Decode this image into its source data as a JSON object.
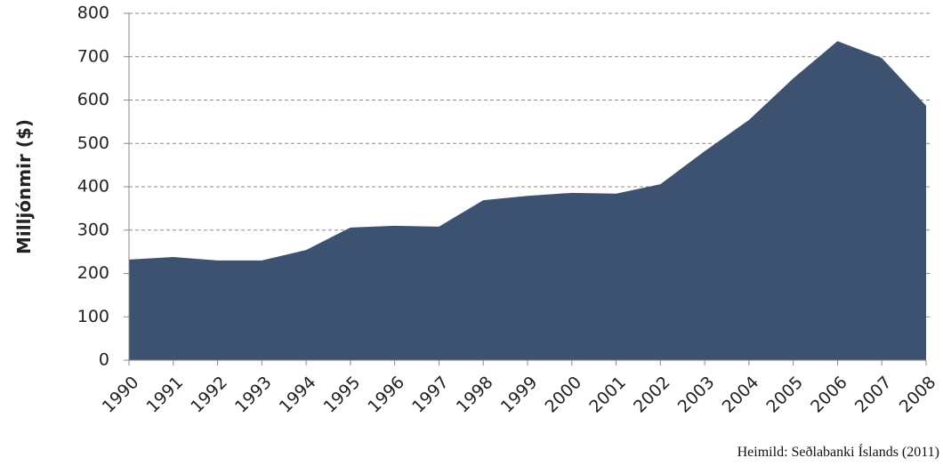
{
  "chart_data": {
    "type": "area",
    "y_label": "Milljónmir ($)",
    "source": "Heimild: Seðlabanki Íslands (2011)",
    "categories": [
      "1990",
      "1991",
      "1992",
      "1993",
      "1994",
      "1995",
      "1996",
      "1997",
      "1998",
      "1999",
      "2000",
      "2001",
      "2002",
      "2003",
      "2004",
      "2005",
      "2006",
      "2007",
      "2008"
    ],
    "values": [
      232,
      238,
      230,
      230,
      254,
      306,
      310,
      308,
      369,
      379,
      386,
      384,
      406,
      482,
      554,
      650,
      736,
      697,
      587
    ],
    "color": "#3d5170",
    "ylim": [
      0,
      800
    ],
    "yticks": [
      0,
      100,
      200,
      300,
      400,
      500,
      600,
      700,
      800
    ],
    "grid": true
  }
}
